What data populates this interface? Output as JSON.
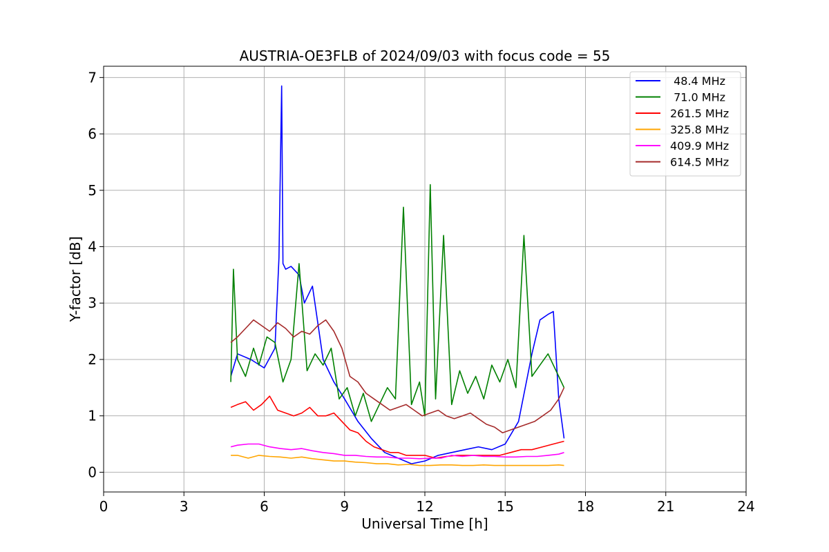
{
  "chart_data": {
    "type": "line",
    "title": "AUSTRIA-OE3FLB of 2024/09/03 with focus code = 55",
    "xlabel": "Universal Time [h]",
    "ylabel": "Y-factor [dB]",
    "xlim": [
      0,
      24
    ],
    "ylim": [
      -0.35,
      7.2
    ],
    "xticks": [
      0,
      3,
      6,
      9,
      12,
      15,
      18,
      21,
      24
    ],
    "xtick_labels": [
      "0",
      "3",
      "6",
      "9",
      "12",
      "15",
      "18",
      "21",
      "24"
    ],
    "yticks": [
      0,
      1,
      2,
      3,
      4,
      5,
      6,
      7
    ],
    "ytick_labels": [
      "0",
      "1",
      "2",
      "3",
      "4",
      "5",
      "6",
      "7"
    ],
    "grid": true,
    "legend_position": "top-right",
    "series": [
      {
        "name": " 48.4 MHz",
        "color": "#0000ff",
        "x": [
          4.75,
          5.0,
          5.5,
          6.0,
          6.4,
          6.55,
          6.65,
          6.7,
          6.8,
          7.0,
          7.3,
          7.5,
          7.8,
          8.2,
          8.6,
          9.0,
          9.5,
          10.0,
          10.5,
          11.0,
          11.5,
          12.0,
          12.5,
          13.0,
          13.5,
          14.0,
          14.5,
          15.0,
          15.5,
          16.0,
          16.3,
          16.6,
          16.8,
          17.0,
          17.2
        ],
        "y": [
          1.7,
          2.1,
          2.0,
          1.85,
          2.2,
          3.8,
          6.85,
          3.7,
          3.6,
          3.65,
          3.5,
          3.0,
          3.3,
          2.0,
          1.6,
          1.3,
          0.9,
          0.6,
          0.35,
          0.25,
          0.15,
          0.2,
          0.3,
          0.35,
          0.4,
          0.45,
          0.4,
          0.5,
          0.9,
          2.1,
          2.7,
          2.8,
          2.85,
          1.3,
          0.6
        ]
      },
      {
        "name": " 71.0 MHz",
        "color": "#008000",
        "x": [
          4.75,
          4.85,
          5.0,
          5.3,
          5.6,
          5.8,
          6.1,
          6.4,
          6.7,
          7.0,
          7.3,
          7.6,
          7.9,
          8.2,
          8.5,
          8.8,
          9.1,
          9.4,
          9.7,
          10.0,
          10.3,
          10.6,
          10.9,
          11.2,
          11.5,
          11.8,
          12.0,
          12.2,
          12.4,
          12.7,
          13.0,
          13.3,
          13.6,
          13.9,
          14.2,
          14.5,
          14.8,
          15.1,
          15.4,
          15.7,
          16.0,
          16.3,
          16.6,
          16.9,
          17.2
        ],
        "y": [
          1.6,
          3.6,
          2.0,
          1.7,
          2.2,
          1.9,
          2.4,
          2.3,
          1.6,
          2.0,
          3.7,
          1.8,
          2.1,
          1.9,
          2.2,
          1.3,
          1.5,
          1.0,
          1.4,
          0.9,
          1.2,
          1.5,
          1.3,
          4.7,
          1.2,
          1.6,
          1.0,
          5.1,
          1.3,
          4.2,
          1.2,
          1.8,
          1.4,
          1.7,
          1.3,
          1.9,
          1.6,
          2.0,
          1.5,
          4.2,
          1.7,
          1.9,
          2.1,
          1.8,
          1.5
        ]
      },
      {
        "name": "261.5 MHz",
        "color": "#ff0000",
        "x": [
          4.75,
          5.0,
          5.3,
          5.6,
          5.9,
          6.2,
          6.5,
          6.8,
          7.1,
          7.4,
          7.7,
          8.0,
          8.3,
          8.6,
          8.9,
          9.2,
          9.5,
          9.8,
          10.1,
          10.4,
          10.7,
          11.0,
          11.3,
          11.6,
          12.0,
          12.4,
          12.8,
          13.2,
          13.6,
          14.0,
          14.4,
          14.8,
          15.2,
          15.6,
          16.0,
          16.4,
          16.8,
          17.2
        ],
        "y": [
          1.15,
          1.2,
          1.25,
          1.1,
          1.2,
          1.35,
          1.1,
          1.05,
          1.0,
          1.05,
          1.15,
          1.0,
          1.0,
          1.05,
          0.9,
          0.75,
          0.7,
          0.55,
          0.45,
          0.4,
          0.35,
          0.35,
          0.3,
          0.3,
          0.3,
          0.25,
          0.28,
          0.3,
          0.3,
          0.3,
          0.3,
          0.3,
          0.35,
          0.4,
          0.4,
          0.45,
          0.5,
          0.55
        ]
      },
      {
        "name": "325.8 MHz",
        "color": "#ffa500",
        "x": [
          4.75,
          5.0,
          5.4,
          5.8,
          6.2,
          6.6,
          7.0,
          7.4,
          7.8,
          8.2,
          8.6,
          9.0,
          9.4,
          9.8,
          10.2,
          10.6,
          11.0,
          11.4,
          11.8,
          12.2,
          12.6,
          13.0,
          13.4,
          13.8,
          14.2,
          14.6,
          15.0,
          15.4,
          15.8,
          16.2,
          16.6,
          17.0,
          17.2
        ],
        "y": [
          0.3,
          0.3,
          0.25,
          0.3,
          0.28,
          0.27,
          0.25,
          0.27,
          0.24,
          0.22,
          0.2,
          0.2,
          0.18,
          0.17,
          0.15,
          0.15,
          0.13,
          0.14,
          0.12,
          0.12,
          0.13,
          0.13,
          0.12,
          0.12,
          0.13,
          0.12,
          0.12,
          0.12,
          0.12,
          0.12,
          0.12,
          0.13,
          0.12
        ]
      },
      {
        "name": "409.9 MHz",
        "color": "#ff00ff",
        "x": [
          4.75,
          5.0,
          5.4,
          5.8,
          6.2,
          6.6,
          7.0,
          7.4,
          7.8,
          8.2,
          8.6,
          9.0,
          9.4,
          9.8,
          10.2,
          10.6,
          11.0,
          11.4,
          11.8,
          12.2,
          12.6,
          13.0,
          13.4,
          13.8,
          14.2,
          14.6,
          15.0,
          15.4,
          15.8,
          16.2,
          16.6,
          17.0,
          17.2
        ],
        "y": [
          0.45,
          0.48,
          0.5,
          0.5,
          0.45,
          0.42,
          0.4,
          0.42,
          0.38,
          0.35,
          0.33,
          0.3,
          0.3,
          0.28,
          0.27,
          0.27,
          0.25,
          0.25,
          0.24,
          0.25,
          0.25,
          0.3,
          0.28,
          0.3,
          0.28,
          0.28,
          0.27,
          0.27,
          0.28,
          0.28,
          0.3,
          0.32,
          0.35
        ]
      },
      {
        "name": "614.5 MHz",
        "color": "#a52a2a",
        "x": [
          4.75,
          5.0,
          5.3,
          5.6,
          5.9,
          6.2,
          6.5,
          6.8,
          7.1,
          7.4,
          7.7,
          8.0,
          8.3,
          8.6,
          8.9,
          9.2,
          9.5,
          9.8,
          10.1,
          10.4,
          10.7,
          11.0,
          11.3,
          11.6,
          11.9,
          12.2,
          12.5,
          12.8,
          13.1,
          13.4,
          13.7,
          14.0,
          14.3,
          14.6,
          14.9,
          15.2,
          15.5,
          15.8,
          16.1,
          16.4,
          16.7,
          17.0,
          17.2
        ],
        "y": [
          2.3,
          2.4,
          2.55,
          2.7,
          2.6,
          2.5,
          2.65,
          2.55,
          2.4,
          2.5,
          2.45,
          2.6,
          2.7,
          2.5,
          2.2,
          1.7,
          1.6,
          1.4,
          1.3,
          1.2,
          1.1,
          1.15,
          1.2,
          1.1,
          1.0,
          1.05,
          1.1,
          1.0,
          0.95,
          1.0,
          1.05,
          0.95,
          0.85,
          0.8,
          0.7,
          0.75,
          0.8,
          0.85,
          0.9,
          1.0,
          1.1,
          1.3,
          1.5
        ]
      }
    ]
  }
}
